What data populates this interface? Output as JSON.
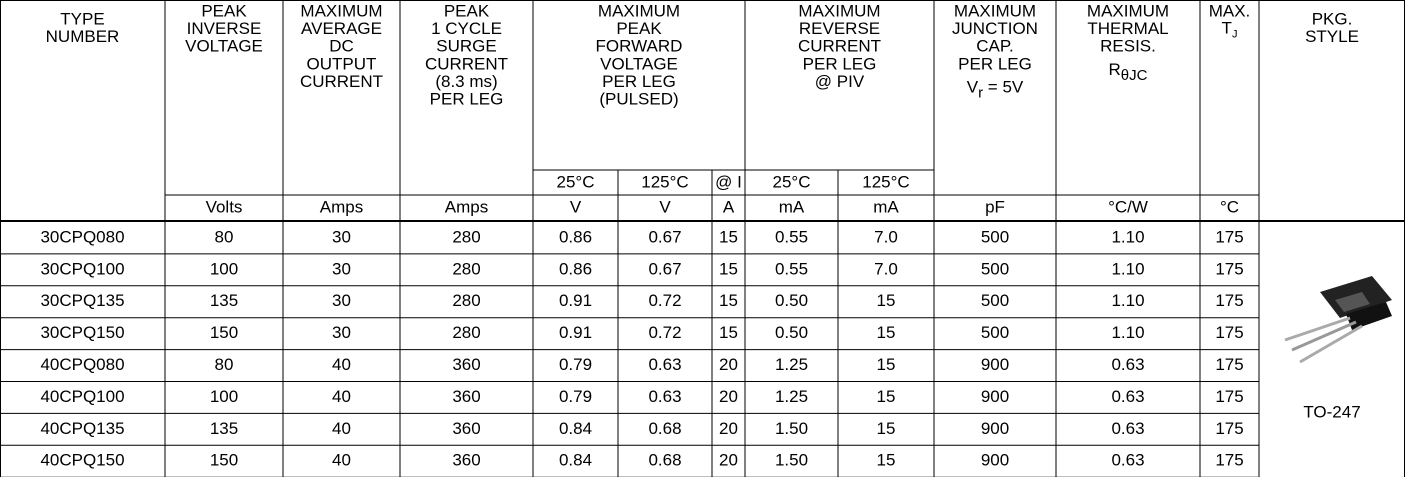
{
  "table": {
    "headers": [
      {
        "lines": [
          "TYPE",
          "NUMBER"
        ]
      },
      {
        "lines": [
          "PEAK",
          "INVERSE",
          "VOLTAGE"
        ]
      },
      {
        "lines": [
          "MAXIMUM",
          "AVERAGE",
          "DC",
          "OUTPUT",
          "CURRENT"
        ]
      },
      {
        "lines": [
          "PEAK",
          "1 CYCLE",
          "SURGE",
          "CURRENT",
          "(8.3 ms)",
          "PER LEG"
        ]
      },
      {
        "lines": [
          "MAXIMUM",
          "PEAK",
          "FORWARD",
          "VOLTAGE",
          "PER LEG",
          "(PULSED)"
        ]
      },
      {
        "lines": [
          "MAXIMUM",
          "REVERSE",
          "CURRENT",
          "PER LEG",
          "@ PIV"
        ]
      },
      {
        "lines": [
          "MAXIMUM",
          "JUNCTION",
          "CAP.",
          "PER LEG"
        ],
        "symbol": "V",
        "subscript": "r",
        "suffix": " = 5V"
      },
      {
        "lines": [
          "MAXIMUM",
          "THERMAL",
          "RESIS."
        ],
        "symbol": "R",
        "subscript": "θJC"
      },
      {
        "lines": [
          "MAX."
        ],
        "symbol": "T",
        "subscript": "J"
      },
      {
        "lines": [
          "PKG.",
          "STYLE"
        ]
      }
    ],
    "subheaders": [
      "25°C",
      "125°C",
      "@ I",
      "25°C",
      "125°C"
    ],
    "units": [
      "Volts",
      "Amps",
      "Amps",
      "V",
      "V",
      "A",
      "mA",
      "mA",
      "pF",
      "°C/W",
      "°C"
    ],
    "rows": [
      [
        "30CPQ080",
        "80",
        "30",
        "280",
        "0.86",
        "0.67",
        "15",
        "0.55",
        "7.0",
        "500",
        "1.10",
        "175"
      ],
      [
        "30CPQ100",
        "100",
        "30",
        "280",
        "0.86",
        "0.67",
        "15",
        "0.55",
        "7.0",
        "500",
        "1.10",
        "175"
      ],
      [
        "30CPQ135",
        "135",
        "30",
        "280",
        "0.91",
        "0.72",
        "15",
        "0.50",
        "15",
        "500",
        "1.10",
        "175"
      ],
      [
        "30CPQ150",
        "150",
        "30",
        "280",
        "0.91",
        "0.72",
        "15",
        "0.50",
        "15",
        "500",
        "1.10",
        "175"
      ],
      [
        "40CPQ080",
        "80",
        "40",
        "360",
        "0.79",
        "0.63",
        "20",
        "1.25",
        "15",
        "900",
        "0.63",
        "175"
      ],
      [
        "40CPQ100",
        "100",
        "40",
        "360",
        "0.79",
        "0.63",
        "20",
        "1.25",
        "15",
        "900",
        "0.63",
        "175"
      ],
      [
        "40CPQ135",
        "135",
        "40",
        "360",
        "0.84",
        "0.68",
        "20",
        "1.50",
        "15",
        "900",
        "0.63",
        "175"
      ],
      [
        "40CPQ150",
        "150",
        "40",
        "360",
        "0.84",
        "0.68",
        "20",
        "1.50",
        "15",
        "900",
        "0.63",
        "175"
      ]
    ],
    "package": "TO-247"
  }
}
